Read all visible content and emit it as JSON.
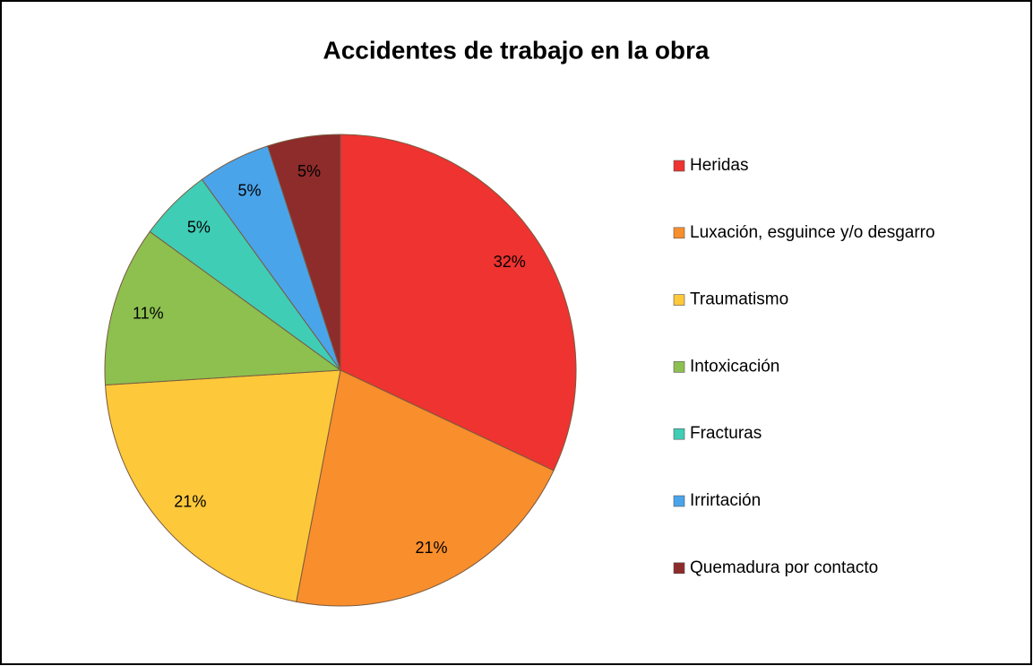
{
  "chart_data": {
    "type": "pie",
    "title": "Accidentes de trabajo en la obra",
    "categories": [
      "Heridas",
      "Luxación, esguince y/o desgarro",
      "Traumatismo",
      "Intoxicación",
      "Fracturas",
      "Irrirtación",
      "Quemadura por contacto"
    ],
    "values": [
      32,
      21,
      21,
      11,
      5,
      5,
      5
    ],
    "value_labels": [
      "32%",
      "21%",
      "21%",
      "11%",
      "5%",
      "5%",
      "5%"
    ],
    "colors": [
      "#ee3330",
      "#f98e2c",
      "#fdc93a",
      "#8dc04f",
      "#3fcdb6",
      "#4aa4ea",
      "#8e2b2b"
    ],
    "legend": "right"
  }
}
